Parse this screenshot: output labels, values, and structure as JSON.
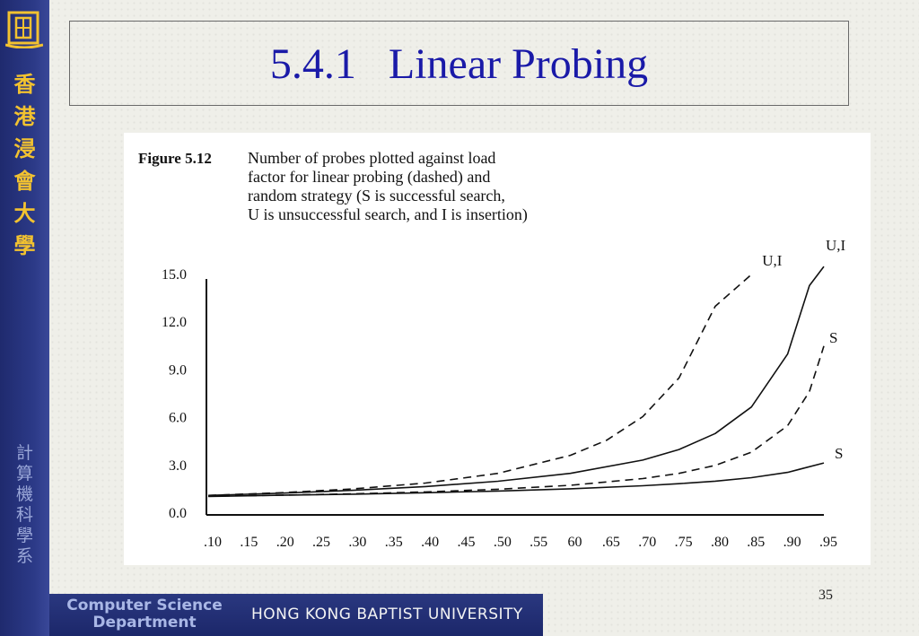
{
  "slide": {
    "title": "5.4.1   Linear Probing",
    "page_number": "35",
    "university_vertical": [
      "香",
      "港",
      "浸",
      "會",
      "大",
      "學"
    ],
    "department_vertical": [
      "計",
      "算",
      "機",
      "科",
      "學",
      "系"
    ],
    "department_name": [
      "Computer Science",
      "Department"
    ],
    "university_name": "HONG KONG BAPTIST UNIVERSITY",
    "colors": {
      "title": "#1a1aa8",
      "sidebar": "#2c3a88",
      "university_vertical": "#f2c230",
      "department_vertical": "#9aa7d8"
    },
    "logo_icon": "hkbu-logo-icon"
  },
  "chart_data": {
    "type": "line",
    "caption": {
      "label": "Figure 5.12",
      "lines": [
        "Number of probes plotted against load",
        "factor for linear probing (dashed) and",
        "random strategy (S is successful search,",
        "U is unsuccessful search, and I is insertion)"
      ]
    },
    "xlabel": "",
    "ylabel": "",
    "x_ticks": [
      ".10",
      ".15",
      ".20",
      ".25",
      ".30",
      ".35",
      ".40",
      ".45",
      ".50",
      ".55",
      "60",
      ".65",
      ".70",
      ".75",
      ".80",
      ".85",
      ".90",
      ".95"
    ],
    "y_ticks": [
      "0.0",
      "3.0",
      "6.0",
      "9.0",
      "12.0",
      "15.0"
    ],
    "xlim": [
      0.1,
      0.95
    ],
    "ylim": [
      0,
      15
    ],
    "grid": false,
    "series": [
      {
        "name": "U,I",
        "style": "dashed",
        "x": [
          0.1,
          0.2,
          0.3,
          0.4,
          0.5,
          0.6,
          0.65,
          0.7,
          0.75,
          0.8,
          0.85
        ],
        "y": [
          1.11,
          1.28,
          1.52,
          1.89,
          2.5,
          3.63,
          4.58,
          6.06,
          8.5,
          13.0,
          15.0
        ]
      },
      {
        "name": "U,I",
        "style": "solid",
        "x": [
          0.1,
          0.2,
          0.3,
          0.4,
          0.5,
          0.6,
          0.7,
          0.75,
          0.8,
          0.85,
          0.9,
          0.93,
          0.95
        ],
        "y": [
          1.11,
          1.25,
          1.43,
          1.67,
          2.0,
          2.5,
          3.33,
          4.0,
          5.0,
          6.67,
          10.0,
          14.3,
          15.5
        ]
      },
      {
        "name": "S",
        "style": "dashed",
        "x": [
          0.1,
          0.2,
          0.3,
          0.4,
          0.5,
          0.6,
          0.7,
          0.75,
          0.8,
          0.85,
          0.9,
          0.93,
          0.95
        ],
        "y": [
          1.06,
          1.13,
          1.21,
          1.33,
          1.5,
          1.75,
          2.17,
          2.5,
          3.0,
          3.83,
          5.5,
          7.64,
          10.5
        ]
      },
      {
        "name": "S",
        "style": "solid",
        "x": [
          0.1,
          0.2,
          0.3,
          0.4,
          0.5,
          0.6,
          0.7,
          0.75,
          0.8,
          0.85,
          0.9,
          0.95
        ],
        "y": [
          1.05,
          1.12,
          1.19,
          1.28,
          1.39,
          1.53,
          1.72,
          1.85,
          2.01,
          2.23,
          2.56,
          3.15
        ]
      }
    ]
  }
}
